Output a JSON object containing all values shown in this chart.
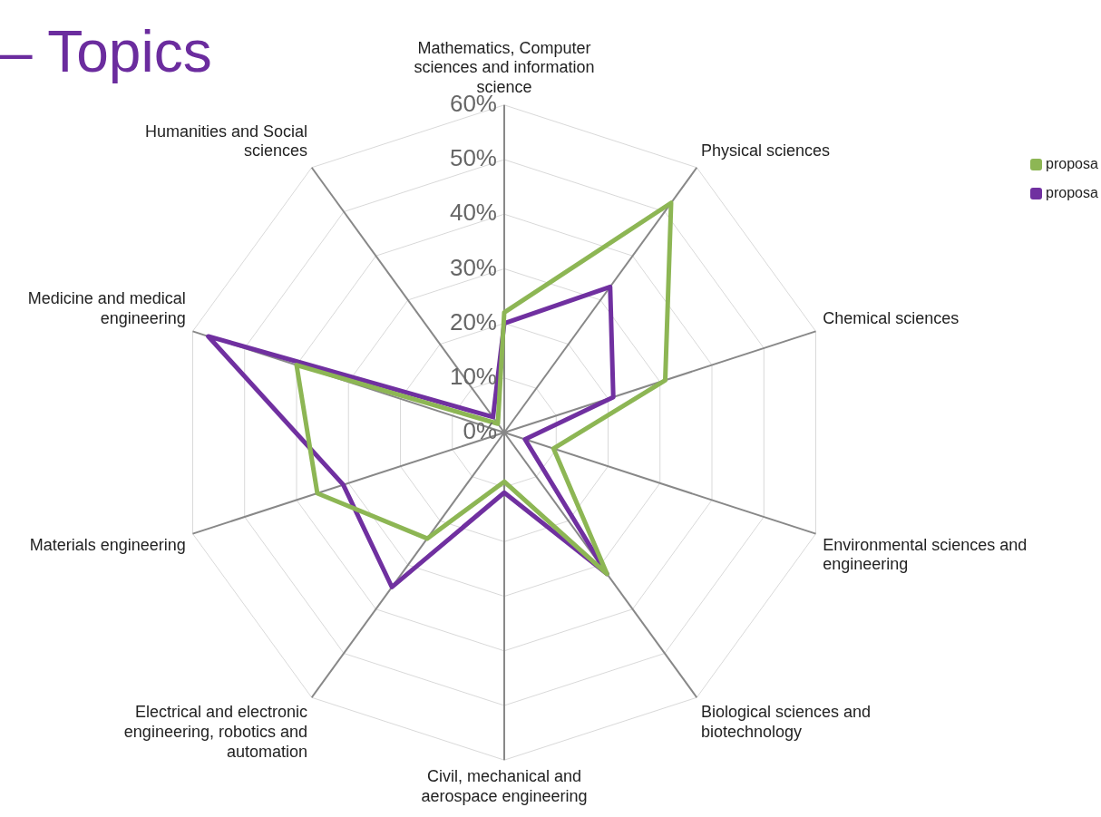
{
  "chart_data": {
    "type": "radar",
    "title": "– Topics",
    "categories": [
      "Mathematics, Computer sciences and information science",
      "Physical sciences",
      "Chemical sciences",
      "Environmental sciences and engineering",
      "Biological sciences and biotechnology",
      "Civil, mechanical and aerospace engineering",
      "Electrical and electronic engineering, robotics and automation",
      "Materials engineering",
      "Medicine and medical engineering",
      "Humanities and Social sciences"
    ],
    "series": [
      {
        "name": "proposa",
        "color": "#8db654",
        "values": [
          22,
          52,
          31,
          9.5,
          32,
          9,
          24,
          36,
          40,
          2
        ]
      },
      {
        "name": "proposa",
        "color": "#7030a0",
        "values": [
          20,
          33,
          21,
          4,
          32,
          11,
          35,
          31,
          57,
          3.5
        ]
      }
    ],
    "ylim": [
      0,
      60
    ],
    "yticks": [
      {
        "value": 0,
        "label": "0%"
      },
      {
        "value": 10,
        "label": "10%"
      },
      {
        "value": 20,
        "label": "20%"
      },
      {
        "value": 30,
        "label": "30%"
      },
      {
        "value": 40,
        "label": "40%"
      },
      {
        "value": 50,
        "label": "50%"
      },
      {
        "value": 60,
        "label": "60%"
      }
    ],
    "grid": true,
    "legend": "right",
    "marker": "none",
    "line_style": "solid"
  }
}
